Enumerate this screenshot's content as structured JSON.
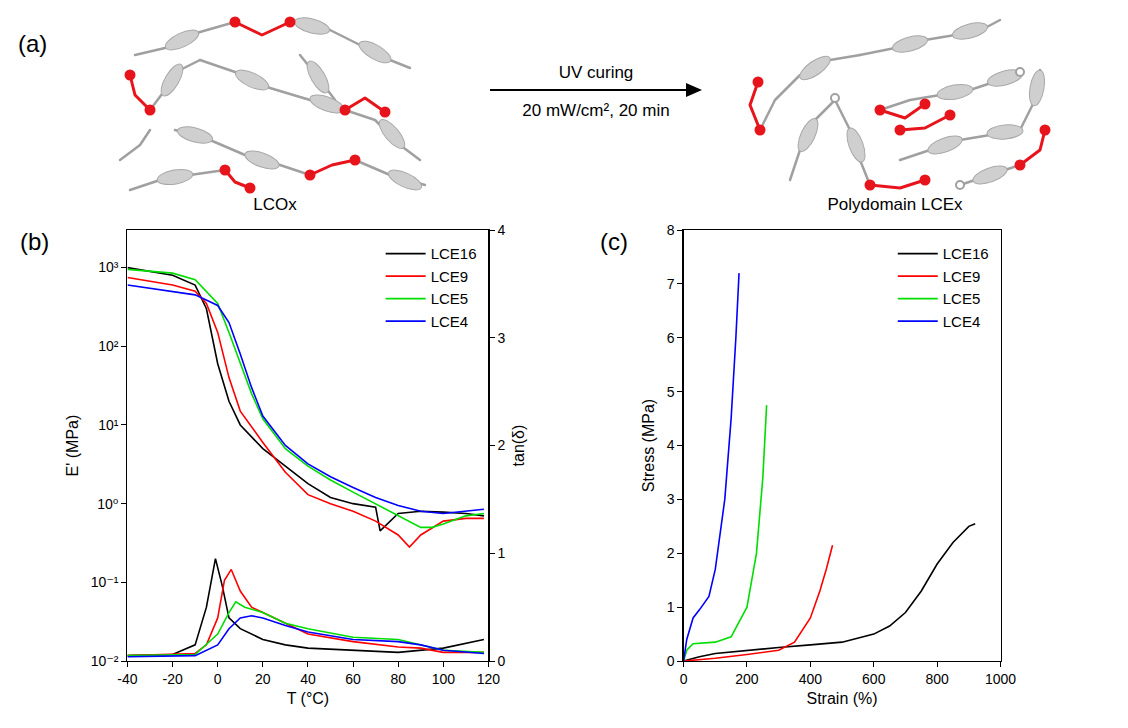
{
  "schematic": {
    "panel_label": "(a)",
    "left_label": "LCOx",
    "arrow_top": "UV curing",
    "arrow_bottom": "20 mW/cm², 20 min",
    "right_label": "Polydomain LCEx"
  },
  "chart_data": [
    {
      "type": "line",
      "panel_label": "(b)",
      "xlabel": "T (°C)",
      "ylabel": "E' (MPa)",
      "y2label": "tan(δ)",
      "xlim": [
        -40,
        120
      ],
      "xticks": [
        -40,
        -20,
        0,
        20,
        40,
        60,
        80,
        100,
        120
      ],
      "log": "y",
      "ylim": [
        0.01,
        3000
      ],
      "yticks": [
        {
          "value": 0.01,
          "label": "10⁻²"
        },
        {
          "value": 0.1,
          "label": "10⁻¹"
        },
        {
          "value": 1,
          "label": "10⁰"
        },
        {
          "value": 10,
          "label": "10¹"
        },
        {
          "value": 100,
          "label": "10²"
        },
        {
          "value": 1000,
          "label": "10³"
        }
      ],
      "y2lim": [
        0,
        4
      ],
      "y2ticks": [
        0,
        1,
        2,
        3,
        4
      ],
      "legend": "upper right",
      "series": [
        {
          "name": "LCE16",
          "color": "#000000",
          "x": [
            -40,
            -20,
            -10,
            -5,
            0,
            5,
            10,
            20,
            30,
            40,
            50,
            60,
            70,
            72,
            80,
            90,
            100,
            110,
            118
          ],
          "values": [
            1000,
            800,
            600,
            300,
            60,
            20,
            10,
            5,
            3,
            1.8,
            1.2,
            1.0,
            0.9,
            0.45,
            0.75,
            0.8,
            0.78,
            0.75,
            0.7
          ]
        },
        {
          "name": "LCE9",
          "color": "#ff0000",
          "x": [
            -40,
            -20,
            -10,
            -5,
            0,
            5,
            10,
            20,
            30,
            40,
            50,
            60,
            70,
            80,
            85,
            90,
            100,
            110,
            118
          ],
          "values": [
            750,
            600,
            500,
            350,
            150,
            40,
            15,
            6,
            2.5,
            1.3,
            1.0,
            0.8,
            0.6,
            0.4,
            0.28,
            0.4,
            0.6,
            0.65,
            0.65
          ]
        },
        {
          "name": "LCE5",
          "color": "#00dd00",
          "x": [
            -40,
            -20,
            -10,
            0,
            5,
            10,
            15,
            20,
            30,
            40,
            50,
            60,
            70,
            80,
            90,
            95,
            100,
            110,
            118
          ],
          "values": [
            950,
            850,
            700,
            350,
            150,
            60,
            25,
            12,
            5,
            3,
            2,
            1.4,
            1.0,
            0.7,
            0.5,
            0.5,
            0.55,
            0.7,
            0.75
          ]
        },
        {
          "name": "LCE4",
          "color": "#0000ff",
          "x": [
            -40,
            -20,
            -10,
            0,
            5,
            10,
            15,
            20,
            30,
            40,
            50,
            60,
            70,
            80,
            90,
            100,
            110,
            118
          ],
          "values": [
            600,
            500,
            450,
            330,
            200,
            80,
            30,
            13,
            5.5,
            3.2,
            2.2,
            1.6,
            1.2,
            0.95,
            0.8,
            0.75,
            0.8,
            0.85
          ]
        },
        {
          "name": "LCE16",
          "color": "#000000",
          "axis": "y2",
          "x": [
            -40,
            -20,
            -10,
            -5,
            -1,
            2,
            5,
            10,
            20,
            30,
            40,
            60,
            80,
            100,
            118
          ],
          "values": [
            0.05,
            0.06,
            0.15,
            0.5,
            0.95,
            0.7,
            0.4,
            0.3,
            0.2,
            0.15,
            0.12,
            0.1,
            0.08,
            0.12,
            0.2
          ]
        },
        {
          "name": "LCE9",
          "color": "#ff0000",
          "axis": "y2",
          "x": [
            -40,
            -10,
            -5,
            0,
            3,
            6,
            10,
            15,
            20,
            30,
            40,
            60,
            80,
            90,
            100,
            118
          ],
          "values": [
            0.05,
            0.07,
            0.15,
            0.4,
            0.75,
            0.85,
            0.65,
            0.5,
            0.45,
            0.35,
            0.25,
            0.18,
            0.13,
            0.12,
            0.08,
            0.08
          ]
        },
        {
          "name": "LCE5",
          "color": "#00dd00",
          "axis": "y2",
          "x": [
            -40,
            -10,
            0,
            5,
            8,
            12,
            20,
            30,
            40,
            60,
            80,
            90,
            100,
            118
          ],
          "values": [
            0.05,
            0.06,
            0.25,
            0.45,
            0.55,
            0.5,
            0.45,
            0.35,
            0.3,
            0.22,
            0.2,
            0.15,
            0.1,
            0.08
          ]
        },
        {
          "name": "LCE4",
          "color": "#0000ff",
          "axis": "y2",
          "x": [
            -40,
            -10,
            0,
            5,
            10,
            15,
            20,
            30,
            40,
            60,
            80,
            90,
            100,
            118
          ],
          "values": [
            0.04,
            0.05,
            0.15,
            0.3,
            0.4,
            0.42,
            0.4,
            0.33,
            0.27,
            0.2,
            0.18,
            0.15,
            0.1,
            0.07
          ]
        }
      ]
    },
    {
      "type": "line",
      "panel_label": "(c)",
      "xlabel": "Strain (%)",
      "ylabel": "Stress (MPa)",
      "xlim": [
        0,
        1000
      ],
      "xticks": [
        0,
        200,
        400,
        600,
        800,
        1000
      ],
      "ylim": [
        0,
        8
      ],
      "yticks": [
        0,
        1,
        2,
        3,
        4,
        5,
        6,
        7,
        8
      ],
      "legend": "upper right",
      "series": [
        {
          "name": "LCE16",
          "color": "#000000",
          "x": [
            0,
            50,
            100,
            200,
            300,
            400,
            500,
            600,
            650,
            700,
            750,
            800,
            850,
            900,
            920
          ],
          "values": [
            0,
            0.08,
            0.14,
            0.2,
            0.25,
            0.3,
            0.35,
            0.5,
            0.65,
            0.9,
            1.3,
            1.8,
            2.2,
            2.5,
            2.55
          ]
        },
        {
          "name": "LCE9",
          "color": "#ff0000",
          "x": [
            0,
            100,
            200,
            300,
            350,
            400,
            430,
            450,
            470
          ],
          "values": [
            0,
            0.05,
            0.12,
            0.2,
            0.35,
            0.8,
            1.3,
            1.7,
            2.15
          ]
        },
        {
          "name": "LCE5",
          "color": "#00dd00",
          "x": [
            0,
            10,
            30,
            100,
            150,
            200,
            230,
            250,
            262
          ],
          "values": [
            0,
            0.2,
            0.32,
            0.35,
            0.45,
            1.0,
            2.0,
            3.4,
            4.75
          ]
        },
        {
          "name": "LCE4",
          "color": "#0000ff",
          "x": [
            0,
            10,
            30,
            50,
            80,
            100,
            130,
            150,
            165,
            175
          ],
          "values": [
            0,
            0.4,
            0.8,
            0.95,
            1.2,
            1.7,
            3.0,
            4.5,
            6.0,
            7.2
          ]
        }
      ]
    }
  ]
}
